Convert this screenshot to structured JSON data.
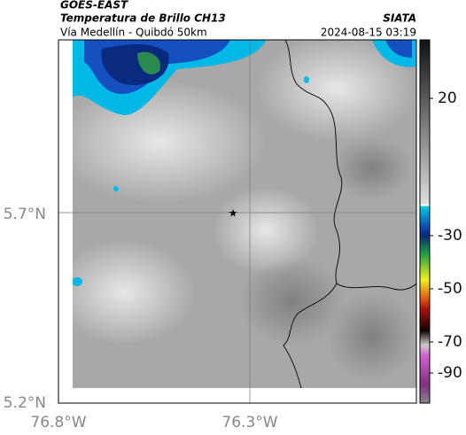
{
  "header": {
    "title": "GOES-EAST",
    "subtitle": "Temperatura de Brillo CH13",
    "source": "SIATA",
    "route": "Vía Medellín - Quibdó 50km",
    "datetime": "2024-08-15 03:19"
  },
  "map": {
    "lat_ticks": [
      "5.7°N",
      "5.2°N"
    ],
    "lon_ticks": [
      "76.8°W",
      "76.3°W"
    ]
  },
  "colorbar": {
    "ticks": [
      "20",
      "-30",
      "-50",
      "-70",
      "-90"
    ]
  }
}
